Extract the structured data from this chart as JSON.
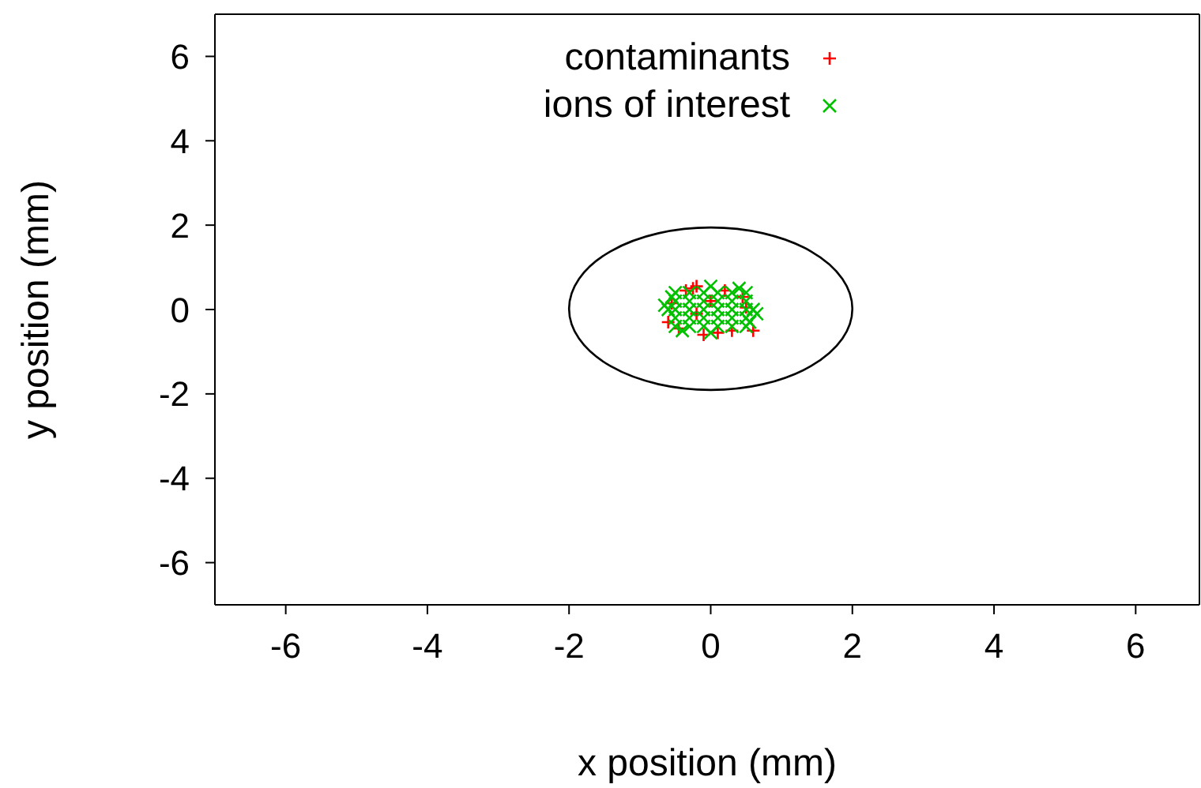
{
  "chart_data": {
    "type": "scatter",
    "xlabel": "x position (mm)",
    "ylabel": "y position (mm)",
    "xlim": [
      -7,
      6.9
    ],
    "ylim": [
      -7,
      7
    ],
    "xticks": [
      -6,
      -4,
      -2,
      0,
      2,
      4,
      6
    ],
    "yticks": [
      -6,
      -4,
      -2,
      0,
      2,
      4,
      6
    ],
    "grid": false,
    "legend": "top",
    "series": [
      {
        "name": "contaminants",
        "color": "#ff0000",
        "marker": "plus",
        "x": [
          -0.25,
          -0.2,
          -0.35,
          -0.6,
          -0.55,
          -0.1,
          0.1,
          0.3,
          0.6,
          0.45,
          0.2,
          -0.45,
          0,
          -0.2,
          0.5
        ],
        "values": [
          0.5,
          0.55,
          0.45,
          -0.3,
          0.15,
          -0.6,
          -0.55,
          -0.5,
          -0.5,
          0.3,
          0.45,
          -0.45,
          0.2,
          -0.1,
          0.05
        ]
      },
      {
        "name": "ions of interest",
        "color": "#00c000",
        "marker": "x",
        "x": [
          -0.5,
          -0.3,
          -0.1,
          0.1,
          0.3,
          0.5,
          -0.5,
          -0.3,
          -0.1,
          0.1,
          0.3,
          0.5,
          -0.5,
          -0.3,
          -0.1,
          0.1,
          0.3,
          0.5,
          -0.5,
          -0.3,
          -0.1,
          0.1,
          0.3,
          0.5,
          -0.5,
          -0.3,
          -0.1,
          0.1,
          0.3,
          0.5,
          -0.6,
          0.6,
          0,
          0,
          -0.55,
          0.55,
          -0.4,
          0.4,
          0.65,
          -0.65
        ],
        "values": [
          -0.4,
          -0.4,
          -0.4,
          -0.4,
          -0.4,
          -0.4,
          -0.2,
          -0.2,
          -0.2,
          -0.2,
          -0.2,
          -0.2,
          0,
          0,
          0,
          0,
          0,
          0,
          0.2,
          0.2,
          0.2,
          0.2,
          0.2,
          0.2,
          0.4,
          0.4,
          0.4,
          0.4,
          0.4,
          0.4,
          0,
          0,
          0.55,
          -0.55,
          0.3,
          -0.3,
          -0.5,
          0.5,
          -0.1,
          0.1
        ]
      }
    ]
  }
}
